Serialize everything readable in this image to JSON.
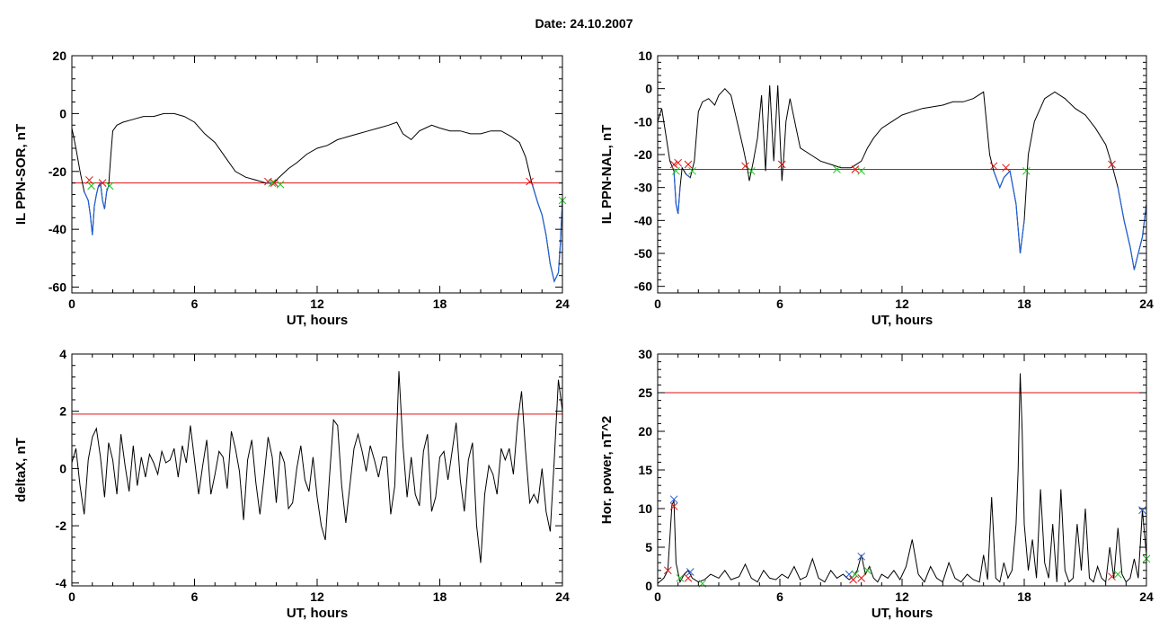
{
  "title": "Date:  24.10.2007",
  "chart_data": [
    {
      "type": "line",
      "xlabel": "UT, hours",
      "ylabel": "IL PPN-SOR, nT",
      "xlim": [
        0,
        24
      ],
      "ylim": [
        -62,
        20
      ],
      "xticks": [
        0,
        6,
        12,
        18,
        24
      ],
      "yticks": [
        -60,
        -40,
        -20,
        0,
        20
      ],
      "threshold": -24,
      "colors": {
        "line": "#000000",
        "below": "#1f5fd6",
        "threshold": "#e01010",
        "marker_start": "#e01010",
        "marker_end": "#20c020"
      },
      "series": [
        {
          "x": [
            0,
            0.2,
            0.4,
            0.6,
            0.8,
            0.9,
            1.0,
            1.1,
            1.2,
            1.3,
            1.4,
            1.5,
            1.6,
            1.7,
            1.8,
            1.9,
            2.0,
            2.2,
            2.5,
            3.0,
            3.5,
            4.0,
            4.5,
            5.0,
            5.5,
            6.0,
            6.5,
            7.0,
            7.5,
            8.0,
            8.5,
            9.0,
            9.5,
            9.8,
            10.0,
            10.3,
            10.6,
            11.0,
            11.5,
            12.0,
            12.5,
            13.0,
            13.5,
            14.0,
            14.5,
            15.0,
            15.5,
            15.9,
            16.2,
            16.6,
            17.0,
            17.3,
            17.6,
            18.0,
            18.5,
            19.0,
            19.5,
            20.0,
            20.5,
            21.0,
            21.5,
            21.9,
            22.2,
            22.5,
            22.8,
            23.0,
            23.2,
            23.4,
            23.6,
            23.8,
            23.9,
            24.0
          ],
          "y": [
            -5,
            -12,
            -20,
            -27,
            -30,
            -35,
            -42,
            -32,
            -28,
            -25,
            -24,
            -30,
            -33,
            -27,
            -25,
            -15,
            -6,
            -4,
            -3,
            -2,
            -1,
            -1,
            0,
            0,
            -1,
            -3,
            -7,
            -10,
            -15,
            -20,
            -22,
            -23,
            -24,
            -24,
            -23,
            -21,
            -19,
            -17,
            -14,
            -12,
            -11,
            -9,
            -8,
            -7,
            -6,
            -5,
            -4,
            -3,
            -7,
            -9,
            -6,
            -5,
            -4,
            -5,
            -6,
            -6,
            -7,
            -7,
            -6,
            -6,
            -8,
            -10,
            -15,
            -24,
            -31,
            -35,
            -42,
            -52,
            -58,
            -55,
            -45,
            -30
          ]
        }
      ],
      "markers_start": [
        [
          0.85,
          -23
        ],
        [
          1.5,
          -24
        ],
        [
          9.6,
          -23.5
        ],
        [
          9.9,
          -24
        ],
        [
          22.4,
          -23.5
        ]
      ],
      "markers_end": [
        [
          0.95,
          -25
        ],
        [
          1.85,
          -25
        ],
        [
          9.8,
          -24
        ],
        [
          10.2,
          -24.5
        ],
        [
          24.0,
          -30
        ]
      ]
    },
    {
      "type": "line",
      "xlabel": "UT, hours",
      "ylabel": "IL PPN-NAL, nT",
      "xlim": [
        0,
        24
      ],
      "ylim": [
        -62,
        10
      ],
      "xticks": [
        0,
        6,
        12,
        18,
        24
      ],
      "yticks": [
        -60,
        -50,
        -40,
        -30,
        -20,
        -10,
        0,
        10
      ],
      "threshold": -24.5,
      "colors": {
        "line": "#000000",
        "below": "#1f5fd6",
        "threshold": "#e01010",
        "marker_start": "#e01010",
        "marker_end": "#20c020"
      },
      "series": [
        {
          "x": [
            0,
            0.2,
            0.4,
            0.6,
            0.8,
            0.9,
            1.0,
            1.1,
            1.2,
            1.4,
            1.6,
            1.8,
            2.0,
            2.2,
            2.5,
            2.8,
            3.0,
            3.3,
            3.6,
            3.9,
            4.2,
            4.4,
            4.5,
            4.7,
            4.9,
            5.1,
            5.3,
            5.5,
            5.7,
            5.9,
            6.1,
            6.2,
            6.3,
            6.5,
            6.8,
            7.0,
            7.5,
            8.0,
            8.5,
            9.0,
            9.5,
            10.0,
            10.3,
            10.6,
            11.0,
            11.5,
            12.0,
            12.5,
            13.0,
            14.0,
            14.5,
            15.0,
            15.5,
            16.0,
            16.3,
            16.5,
            16.8,
            17.0,
            17.3,
            17.6,
            17.8,
            18.0,
            18.2,
            18.5,
            19.0,
            19.5,
            20.0,
            20.5,
            21.0,
            21.5,
            22.0,
            22.3,
            22.6,
            22.9,
            23.2,
            23.4,
            23.6,
            23.8,
            24.0
          ],
          "y": [
            -10,
            -6,
            -14,
            -22,
            -25,
            -35,
            -38,
            -30,
            -24,
            -26,
            -27,
            -22,
            -7,
            -4,
            -3,
            -5,
            -2,
            0,
            -2,
            -10,
            -18,
            -24,
            -28,
            -22,
            -15,
            -2,
            -25,
            1,
            -22,
            1,
            -28,
            -20,
            -10,
            -3,
            -12,
            -18,
            -20,
            -22,
            -23,
            -24,
            -24,
            -22,
            -18,
            -15,
            -12,
            -10,
            -8,
            -7,
            -6,
            -5,
            -4,
            -4,
            -3,
            -1,
            -20,
            -25,
            -30,
            -27,
            -25,
            -35,
            -50,
            -40,
            -20,
            -10,
            -3,
            -1,
            -3,
            -6,
            -8,
            -12,
            -17,
            -23,
            -30,
            -40,
            -48,
            -55,
            -50,
            -45,
            -35
          ]
        }
      ],
      "markers_start": [
        [
          0.8,
          -23
        ],
        [
          1.0,
          -22.5
        ],
        [
          1.5,
          -23
        ],
        [
          4.3,
          -23.5
        ],
        [
          6.1,
          -23
        ],
        [
          9.7,
          -24.5
        ],
        [
          16.5,
          -23.5
        ],
        [
          17.1,
          -24
        ],
        [
          22.3,
          -23
        ]
      ],
      "markers_end": [
        [
          0.9,
          -25
        ],
        [
          1.7,
          -25
        ],
        [
          4.6,
          -25
        ],
        [
          8.8,
          -24.5
        ],
        [
          10.0,
          -25
        ],
        [
          18.1,
          -25
        ]
      ]
    },
    {
      "type": "line",
      "xlabel": "UT, hours",
      "ylabel": "deltaX, nT",
      "xlim": [
        0,
        24
      ],
      "ylim": [
        -4.1,
        4
      ],
      "xticks": [
        0,
        6,
        12,
        18,
        24
      ],
      "yticks": [
        -4,
        -2,
        0,
        2,
        4
      ],
      "threshold": 1.9,
      "colors": {
        "line": "#000000",
        "threshold": "#e01010"
      },
      "series": [
        {
          "x": [
            0,
            0.2,
            0.4,
            0.6,
            0.8,
            1.0,
            1.2,
            1.4,
            1.6,
            1.8,
            2.0,
            2.2,
            2.4,
            2.6,
            2.8,
            3.0,
            3.2,
            3.4,
            3.6,
            3.8,
            4.0,
            4.2,
            4.4,
            4.6,
            4.8,
            5.0,
            5.2,
            5.4,
            5.6,
            5.8,
            6.0,
            6.2,
            6.4,
            6.6,
            6.8,
            7.0,
            7.2,
            7.4,
            7.6,
            7.8,
            8.0,
            8.2,
            8.4,
            8.6,
            8.8,
            9.0,
            9.2,
            9.4,
            9.6,
            9.8,
            10.0,
            10.2,
            10.4,
            10.6,
            10.8,
            11.0,
            11.2,
            11.4,
            11.6,
            11.8,
            12.0,
            12.2,
            12.4,
            12.6,
            12.8,
            13.0,
            13.2,
            13.4,
            13.6,
            13.8,
            14.0,
            14.2,
            14.4,
            14.6,
            14.8,
            15.0,
            15.2,
            15.4,
            15.6,
            15.8,
            16.0,
            16.2,
            16.4,
            16.6,
            16.8,
            17.0,
            17.2,
            17.4,
            17.6,
            17.8,
            18.0,
            18.2,
            18.4,
            18.6,
            18.8,
            19.0,
            19.2,
            19.4,
            19.6,
            19.8,
            20.0,
            20.2,
            20.4,
            20.6,
            20.8,
            21.0,
            21.2,
            21.4,
            21.6,
            21.8,
            22.0,
            22.2,
            22.4,
            22.6,
            22.8,
            23.0,
            23.2,
            23.4,
            23.6,
            23.8,
            24.0
          ],
          "y": [
            0.2,
            0.7,
            -0.6,
            -1.6,
            0.3,
            1.1,
            1.4,
            0.4,
            -1.0,
            0.9,
            0.3,
            -0.9,
            1.2,
            0.1,
            -0.8,
            0.8,
            -0.6,
            0.4,
            -0.3,
            0.5,
            0.2,
            -0.2,
            0.6,
            0.2,
            0.3,
            0.7,
            -0.3,
            0.8,
            0.2,
            1.5,
            0.3,
            -0.9,
            0.1,
            1.0,
            -0.9,
            -0.2,
            0.6,
            0.4,
            -0.7,
            1.3,
            0.7,
            -0.1,
            -1.8,
            0.3,
            1.0,
            -0.5,
            -1.6,
            -0.3,
            1.1,
            0.4,
            -1.2,
            0.6,
            0.2,
            -1.4,
            -1.2,
            0.0,
            0.8,
            -0.4,
            -0.8,
            0.4,
            -1.0,
            -2.0,
            -2.5,
            -0.3,
            1.7,
            1.5,
            -0.6,
            -1.9,
            -0.6,
            0.7,
            1.2,
            0.6,
            -0.1,
            0.8,
            0.3,
            -0.3,
            0.4,
            0.4,
            -1.6,
            -0.6,
            3.4,
            0.8,
            -1.0,
            0.4,
            -0.9,
            -1.3,
            0.6,
            1.2,
            -1.5,
            -1.0,
            0.4,
            0.6,
            -0.4,
            0.6,
            1.6,
            -0.4,
            -1.5,
            0.3,
            0.9,
            -2.0,
            -3.3,
            -0.9,
            0.1,
            -0.2,
            -0.9,
            0.7,
            0.3,
            0.7,
            -0.2,
            1.6,
            2.7,
            0.6,
            -1.2,
            -0.9,
            -1.2,
            0.0,
            -1.5,
            -2.2,
            0.3,
            3.1,
            2.0
          ]
        }
      ]
    },
    {
      "type": "line",
      "xlabel": "UT, hours",
      "ylabel": "Hor. power, nT^2",
      "xlim": [
        0,
        24
      ],
      "ylim": [
        0,
        30
      ],
      "xticks": [
        0,
        6,
        12,
        18,
        24
      ],
      "yticks": [
        0,
        5,
        10,
        15,
        20,
        25,
        30
      ],
      "threshold": 25,
      "colors": {
        "line": "#000000",
        "threshold": "#e01010",
        "marker_red": "#e01010",
        "marker_blue": "#2060e0",
        "marker_green": "#20c020"
      },
      "series": [
        {
          "x": [
            0,
            0.3,
            0.5,
            0.7,
            0.8,
            0.9,
            1.1,
            1.3,
            1.5,
            1.7,
            2.0,
            2.3,
            2.6,
            3.0,
            3.3,
            3.6,
            4.0,
            4.3,
            4.6,
            4.9,
            5.2,
            5.5,
            5.8,
            6.1,
            6.4,
            6.7,
            7.0,
            7.3,
            7.6,
            7.9,
            8.2,
            8.5,
            8.8,
            9.1,
            9.4,
            9.6,
            9.8,
            10.0,
            10.2,
            10.4,
            10.6,
            10.8,
            11.0,
            11.3,
            11.6,
            11.9,
            12.2,
            12.5,
            12.8,
            13.1,
            13.4,
            13.7,
            14.0,
            14.3,
            14.6,
            14.9,
            15.2,
            15.5,
            15.8,
            16.0,
            16.2,
            16.4,
            16.6,
            16.8,
            17.0,
            17.2,
            17.4,
            17.6,
            17.7,
            17.8,
            17.9,
            18.0,
            18.2,
            18.4,
            18.6,
            18.8,
            19.0,
            19.2,
            19.4,
            19.6,
            19.8,
            20.0,
            20.2,
            20.4,
            20.6,
            20.8,
            21.0,
            21.2,
            21.4,
            21.6,
            21.8,
            22.0,
            22.2,
            22.4,
            22.6,
            22.8,
            23.0,
            23.2,
            23.4,
            23.6,
            23.8,
            24.0
          ],
          "y": [
            0.3,
            1.0,
            2.0,
            10.5,
            11.0,
            3.0,
            0.5,
            1.5,
            2.0,
            1.0,
            0.5,
            0.8,
            1.5,
            1.0,
            2.0,
            0.8,
            1.2,
            2.8,
            1.0,
            0.5,
            2.0,
            1.0,
            0.8,
            1.5,
            1.0,
            2.5,
            0.8,
            1.2,
            3.5,
            1.0,
            0.5,
            2.0,
            1.0,
            1.5,
            0.8,
            1.2,
            2.0,
            4.0,
            1.5,
            2.5,
            1.0,
            0.5,
            1.5,
            1.0,
            2.0,
            0.8,
            2.5,
            6.0,
            1.5,
            0.5,
            2.5,
            1.0,
            0.5,
            3.0,
            1.0,
            0.5,
            1.5,
            0.8,
            0.5,
            4.0,
            0.8,
            11.5,
            1.0,
            0.5,
            3.0,
            1.0,
            2.0,
            8.0,
            15.0,
            27.5,
            20.0,
            8.0,
            2.0,
            6.0,
            1.0,
            12.5,
            3.0,
            1.0,
            8.0,
            0.5,
            12.5,
            2.0,
            0.5,
            1.0,
            8.0,
            2.0,
            10.0,
            1.0,
            0.5,
            2.5,
            1.0,
            0.5,
            5.0,
            1.0,
            7.5,
            1.5,
            0.5,
            1.0,
            3.5,
            1.0,
            9.8,
            4.0
          ]
        }
      ],
      "markers_red": [
        [
          0.5,
          2.0
        ],
        [
          0.8,
          10.3
        ],
        [
          1.5,
          1.0
        ],
        [
          9.6,
          0.8
        ],
        [
          10.0,
          1.0
        ],
        [
          22.3,
          1.2
        ]
      ],
      "markers_blue": [
        [
          0.8,
          11.2
        ],
        [
          1.6,
          1.8
        ],
        [
          9.4,
          1.5
        ],
        [
          10.0,
          3.8
        ],
        [
          23.8,
          9.8
        ]
      ],
      "markers_green": [
        [
          1.1,
          1.0
        ],
        [
          2.2,
          0.3
        ],
        [
          9.7,
          1.5
        ],
        [
          10.3,
          2.0
        ],
        [
          22.6,
          1.5
        ],
        [
          24.0,
          3.5
        ]
      ]
    }
  ]
}
